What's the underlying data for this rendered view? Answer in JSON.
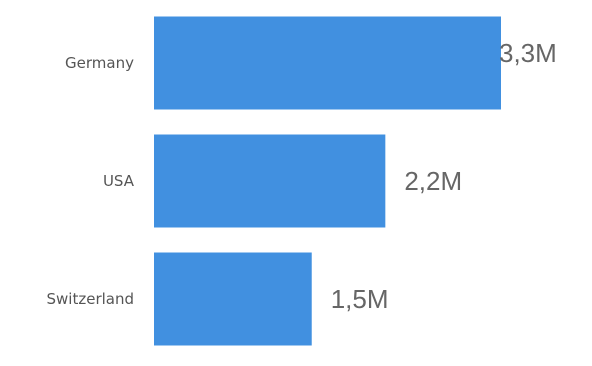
{
  "chart_data": {
    "type": "bar",
    "orientation": "horizontal",
    "categories": [
      "Germany",
      "USA",
      "Switzerland"
    ],
    "values": [
      3.3,
      2.2,
      1.5
    ],
    "value_labels": [
      "3,3M",
      "2,2M",
      "1,5M"
    ],
    "unit": "M",
    "xlim": [
      0,
      3.3
    ],
    "grid": false,
    "bar_color": "#4190E0"
  }
}
